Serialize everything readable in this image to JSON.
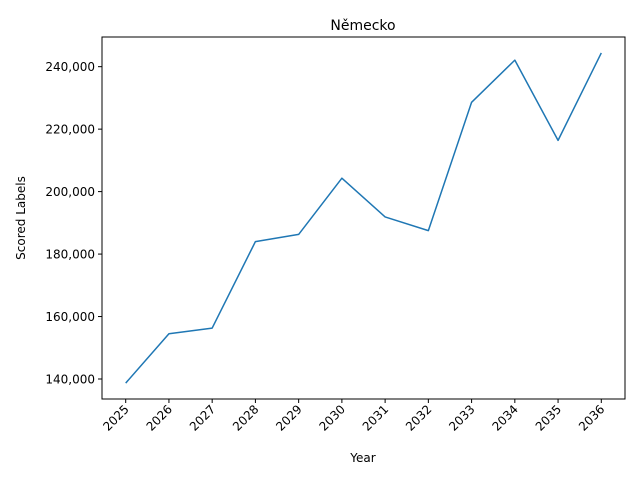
{
  "chart_data": {
    "type": "line",
    "title": "Německo",
    "xlabel": "Year",
    "ylabel": "Scored Labels",
    "x": [
      "2025",
      "2026",
      "2027",
      "2028",
      "2029",
      "2030",
      "2031",
      "2032",
      "2033",
      "2034",
      "2035",
      "2036"
    ],
    "series": [
      {
        "values": [
          138700,
          154500,
          156300,
          184000,
          186300,
          204300,
          191900,
          187500,
          228600,
          242100,
          216400,
          244400
        ],
        "color": "#1f77b4"
      }
    ],
    "ylim": [
      133600,
      249500
    ],
    "yticks": [
      140000,
      160000,
      180000,
      200000,
      220000,
      240000
    ],
    "ytick_labels": [
      "140,000",
      "160,000",
      "180,000",
      "200,000",
      "220,000",
      "240,000"
    ],
    "grid": false,
    "legend": false
  }
}
